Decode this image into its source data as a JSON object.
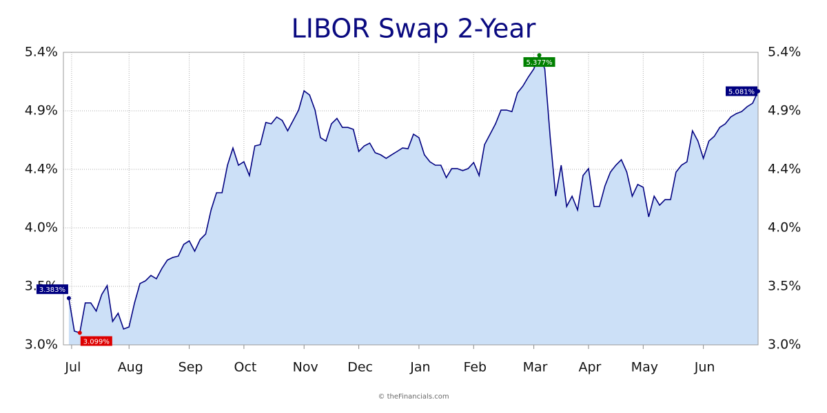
{
  "chart_data": {
    "type": "area",
    "title": "LIBOR Swap 2-Year",
    "values": [
      3.383,
      3.113,
      3.099,
      3.344,
      3.344,
      3.277,
      3.412,
      3.486,
      3.192,
      3.26,
      3.13,
      3.147,
      3.344,
      3.503,
      3.525,
      3.57,
      3.542,
      3.627,
      3.695,
      3.717,
      3.728,
      3.824,
      3.853,
      3.768,
      3.864,
      3.909,
      4.107,
      4.248,
      4.248,
      4.474,
      4.615,
      4.474,
      4.502,
      4.389,
      4.632,
      4.643,
      4.824,
      4.813,
      4.869,
      4.841,
      4.756,
      4.841,
      4.926,
      5.084,
      5.05,
      4.926,
      4.7,
      4.672,
      4.813,
      4.858,
      4.784,
      4.784,
      4.768,
      4.587,
      4.632,
      4.655,
      4.576,
      4.559,
      4.53,
      4.559,
      4.587,
      4.615,
      4.609,
      4.728,
      4.7,
      4.559,
      4.502,
      4.474,
      4.474,
      4.372,
      4.446,
      4.446,
      4.429,
      4.446,
      4.496,
      4.389,
      4.643,
      4.728,
      4.813,
      4.926,
      4.926,
      4.914,
      5.067,
      5.123,
      5.197,
      5.264,
      5.377,
      5.264,
      4.7,
      4.22,
      4.474,
      4.135,
      4.22,
      4.107,
      4.389,
      4.446,
      4.135,
      4.135,
      4.304,
      4.417,
      4.474,
      4.519,
      4.417,
      4.22,
      4.316,
      4.293,
      4.05,
      4.22,
      4.146,
      4.192,
      4.192,
      4.417,
      4.474,
      4.502,
      4.756,
      4.672,
      4.53,
      4.672,
      4.711,
      4.784,
      4.813,
      4.869,
      4.897,
      4.914,
      4.954,
      4.982,
      5.081
    ],
    "color": "#000080",
    "fill": "#cce0f7",
    "xlim": [
      -1,
      126
    ],
    "xticks": [
      {
        "value": 0.5,
        "label": "Jul"
      },
      {
        "value": 11,
        "label": "Aug"
      },
      {
        "value": 22,
        "label": "Sep"
      },
      {
        "value": 32,
        "label": "Oct"
      },
      {
        "value": 43,
        "label": "Nov"
      },
      {
        "value": 53,
        "label": "Dec"
      },
      {
        "value": 64,
        "label": "Jan"
      },
      {
        "value": 74,
        "label": "Feb"
      },
      {
        "value": 85,
        "label": "Mar"
      },
      {
        "value": 95,
        "label": "Apr"
      },
      {
        "value": 105,
        "label": "May"
      },
      {
        "value": 116,
        "label": "Jun"
      }
    ],
    "ylim": [
      3,
      5.4
    ],
    "yticks": [
      {
        "value": 3,
        "label": "3.0%"
      },
      {
        "value": 3.48,
        "label": "3.5%"
      },
      {
        "value": 3.96,
        "label": "4.0%"
      },
      {
        "value": 4.44,
        "label": "4.4%"
      },
      {
        "value": 4.92,
        "label": "4.9%"
      },
      {
        "value": 5.4,
        "label": "5.4%"
      }
    ],
    "grid": true,
    "highlights": [
      {
        "x": 0,
        "value": 3.383,
        "label": "3.383%",
        "color": "#000080"
      },
      {
        "x": 2,
        "value": 3.099,
        "label": "3.099%",
        "color": "#dd0000"
      },
      {
        "x": 86,
        "value": 5.377,
        "label": "5.377%",
        "color": "#008000"
      },
      {
        "x": 126,
        "value": 5.081,
        "label": "5.081%",
        "color": "#000080"
      }
    ],
    "footer": "© theFinancials.com"
  }
}
